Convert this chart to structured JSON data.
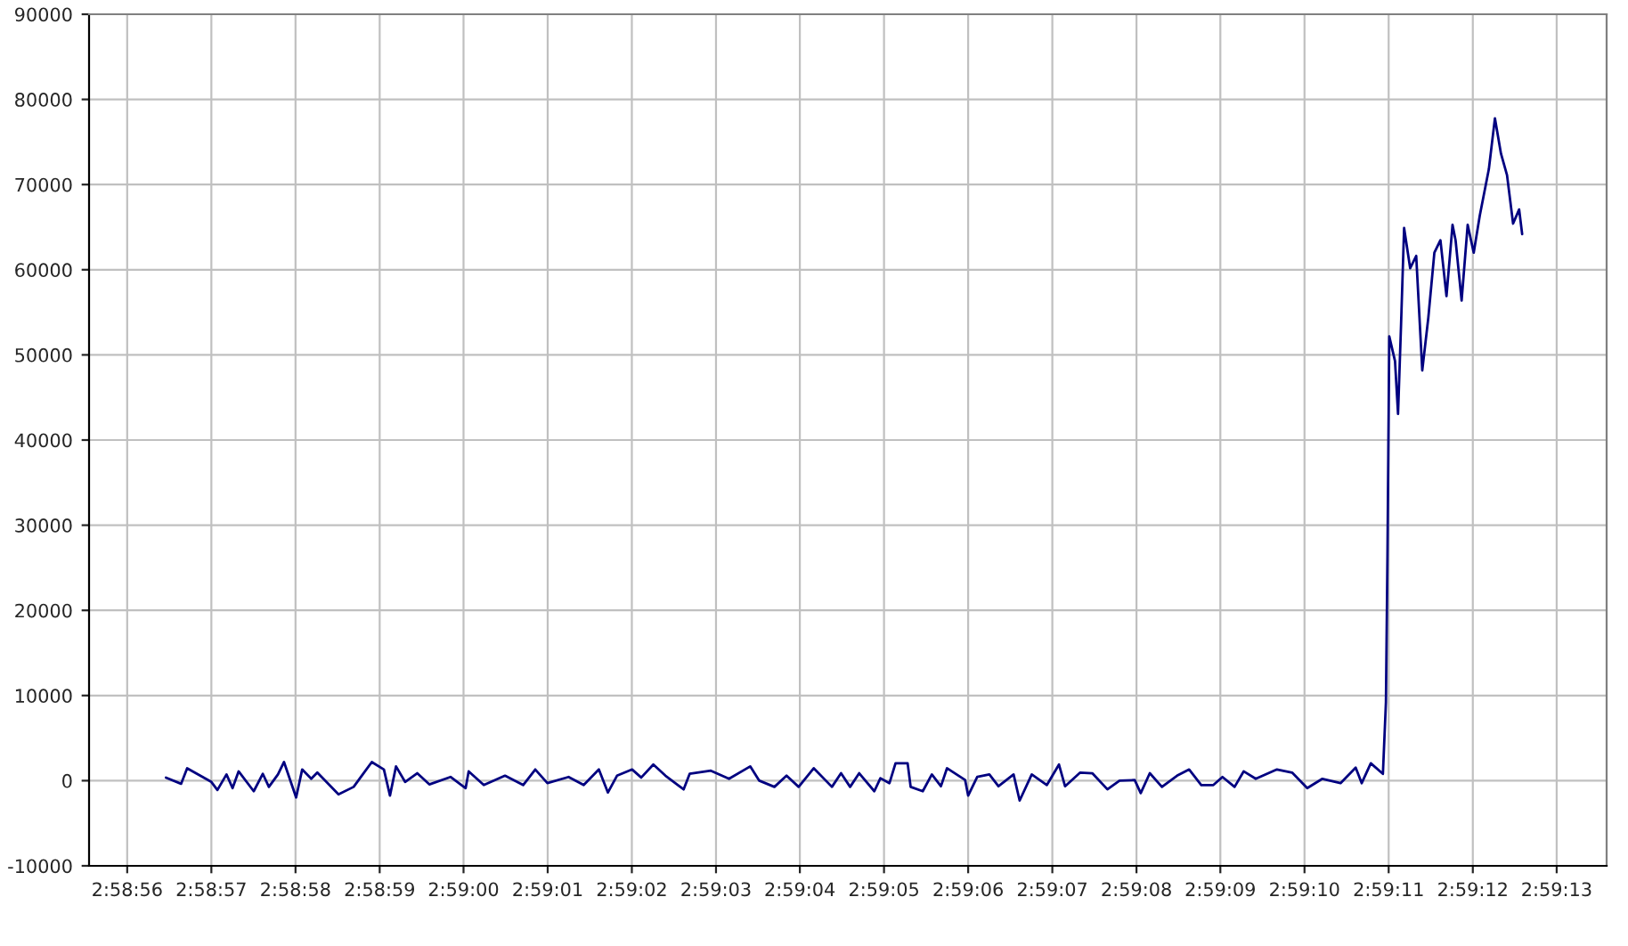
{
  "chart_data": {
    "type": "line",
    "x": [
      2.98235,
      2.9824,
      2.98242,
      2.9825,
      2.98252,
      2.98255,
      2.98257,
      2.98259,
      2.98264,
      2.98267,
      2.98269,
      2.98272,
      2.98274,
      2.98278,
      2.9828,
      2.98283,
      2.98285,
      2.98292,
      2.98297,
      2.983,
      2.98303,
      2.98307,
      2.98309,
      2.98311,
      2.98314,
      2.98318,
      2.98322,
      2.98329,
      2.98334,
      2.98335,
      2.9834,
      2.98347,
      2.98353,
      2.98357,
      2.98361,
      2.98368,
      2.98373,
      2.98378,
      2.98381,
      2.98384,
      2.98389,
      2.98392,
      2.98396,
      2.984,
      2.98406,
      2.98408,
      2.98415,
      2.98421,
      2.98428,
      2.98431,
      2.98436,
      2.9844,
      2.98444,
      2.98449,
      2.98455,
      2.98458,
      2.98461,
      2.98464,
      2.98469,
      2.98471,
      2.98474,
      2.98476,
      2.9848,
      2.98481,
      2.98485,
      2.98488,
      2.98491,
      2.98493,
      2.98499,
      2.985,
      2.98503,
      2.98507,
      2.9851,
      2.98515,
      2.98517,
      2.98521,
      2.98526,
      2.9853,
      2.98532,
      2.98537,
      2.98541,
      2.98546,
      2.9855,
      2.98555,
      2.98557,
      2.9856,
      2.98564,
      2.98569,
      2.98573,
      2.98577,
      2.98581,
      2.98584,
      2.98588,
      2.98591,
      2.98595,
      2.98602,
      2.98607,
      2.98612,
      2.98617,
      2.98623,
      2.98628,
      2.9863,
      2.98633,
      2.98637,
      2.98638,
      2.986385,
      2.986389,
      2.986391,
      2.98641,
      2.98642,
      2.98643,
      2.98644,
      2.98646,
      2.98648,
      2.9865,
      2.98652,
      2.98654,
      2.98656,
      2.98658,
      2.9866,
      2.98661,
      2.98663,
      2.98665,
      2.98667,
      2.98669,
      2.98672,
      2.98674,
      2.98676,
      2.98678,
      2.9868,
      2.98682,
      2.98683
    ],
    "series": [
      {
        "color": "#000080",
        "values": [
          365,
          -365,
          1460,
          -146,
          -1095,
          730,
          -876,
          1095,
          -1241,
          803,
          -730,
          730,
          2190,
          -1971,
          1314,
          219,
          949,
          -1606,
          -730,
          730,
          2190,
          1314,
          -1752,
          1679,
          -146,
          876,
          -438,
          438,
          -876,
          1095,
          -511,
          584,
          -511,
          1314,
          -292,
          438,
          -511,
          1314,
          -1387,
          584,
          1314,
          365,
          1898,
          584,
          -1022,
          803,
          1168,
          219,
          1679,
          0,
          -730,
          584,
          -730,
          1460,
          -730,
          876,
          -730,
          876,
          -1241,
          292,
          -292,
          2044,
          2044,
          -730,
          -1241,
          730,
          -657,
          1460,
          73,
          -1752,
          438,
          730,
          -657,
          730,
          -2336,
          730,
          -511,
          1898,
          -657,
          949,
          876,
          -1022,
          0,
          73,
          -1460,
          876,
          -730,
          584,
          1314,
          -511,
          -511,
          438,
          -730,
          1095,
          219,
          1314,
          949,
          -876,
          219,
          -292,
          1533,
          -292,
          2044,
          803,
          9230,
          26350,
          43440,
          52170,
          49270,
          43070,
          53630,
          64900,
          60180,
          61620,
          48180,
          54360,
          62000,
          63460,
          56910,
          65270,
          63460,
          56390,
          65270,
          62000,
          66360,
          71820,
          77780,
          73630,
          71100,
          65420,
          67080,
          64180
        ]
      }
    ],
    "xlim": [
      2.982096,
      2.987109
    ],
    "xticks": [
      {
        "value": 2.982222,
        "label": "2:58:56"
      },
      {
        "value": 2.9825,
        "label": "2:58:57"
      },
      {
        "value": 2.982778,
        "label": "2:58:58"
      },
      {
        "value": 2.983056,
        "label": "2:58:59"
      },
      {
        "value": 2.983333,
        "label": "2:59:00"
      },
      {
        "value": 2.983611,
        "label": "2:59:01"
      },
      {
        "value": 2.983889,
        "label": "2:59:02"
      },
      {
        "value": 2.984167,
        "label": "2:59:03"
      },
      {
        "value": 2.984444,
        "label": "2:59:04"
      },
      {
        "value": 2.984722,
        "label": "2:59:05"
      },
      {
        "value": 2.985,
        "label": "2:59:06"
      },
      {
        "value": 2.985278,
        "label": "2:59:07"
      },
      {
        "value": 2.985556,
        "label": "2:59:08"
      },
      {
        "value": 2.985833,
        "label": "2:59:09"
      },
      {
        "value": 2.986111,
        "label": "2:59:10"
      },
      {
        "value": 2.986389,
        "label": "2:59:11"
      },
      {
        "value": 2.986667,
        "label": "2:59:12"
      },
      {
        "value": 2.986944,
        "label": "2:59:13"
      }
    ],
    "ylim": [
      -10000,
      90000
    ],
    "yticks": [
      -10000,
      0,
      10000,
      20000,
      30000,
      40000,
      50000,
      60000,
      70000,
      80000,
      90000
    ],
    "grid": true,
    "marker": "none",
    "line_style": "solid"
  }
}
